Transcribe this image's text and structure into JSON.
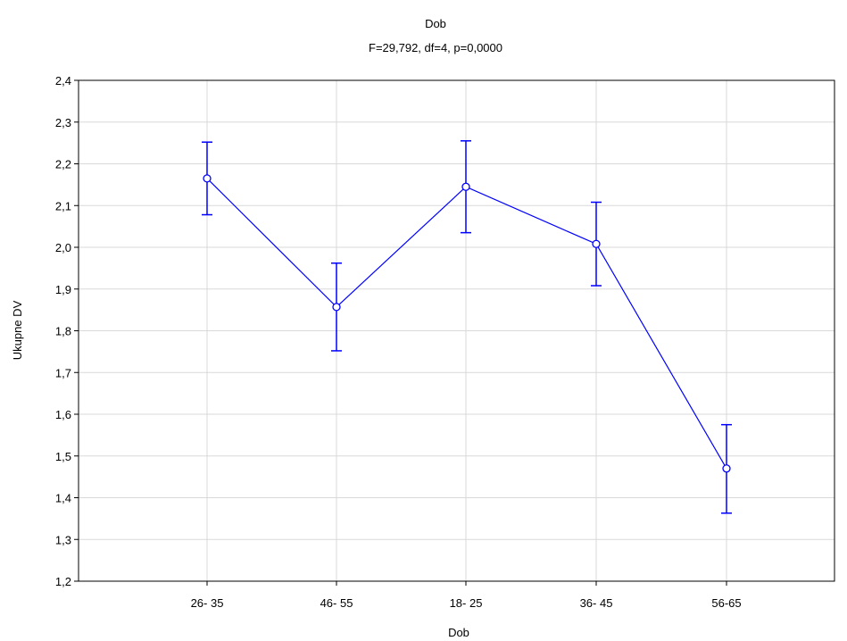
{
  "chart_data": {
    "type": "line",
    "title": "Dob",
    "subtitle": "F=29,792, df=4, p=0,0000",
    "xlabel": "Dob",
    "ylabel": "Ukupne DV",
    "categories": [
      "26- 35",
      "46- 55",
      "18- 25",
      "36- 45",
      "56-65"
    ],
    "series": [
      {
        "values": [
          2.165,
          1.857,
          2.145,
          2.008,
          1.47
        ],
        "ci_lower": [
          2.078,
          1.752,
          2.035,
          1.908,
          1.363
        ],
        "ci_upper": [
          2.252,
          1.962,
          2.255,
          2.108,
          1.575
        ]
      }
    ],
    "ylim": [
      1.2,
      2.4
    ],
    "yticks": [
      "1,2",
      "1,3",
      "1,4",
      "1,5",
      "1,6",
      "1,7",
      "1,8",
      "1,9",
      "2,0",
      "2,1",
      "2,2",
      "2,3",
      "2,4"
    ],
    "grid": true,
    "legend": "none",
    "series_color": "#0000ff",
    "grid_color": "#d9d9d9"
  }
}
